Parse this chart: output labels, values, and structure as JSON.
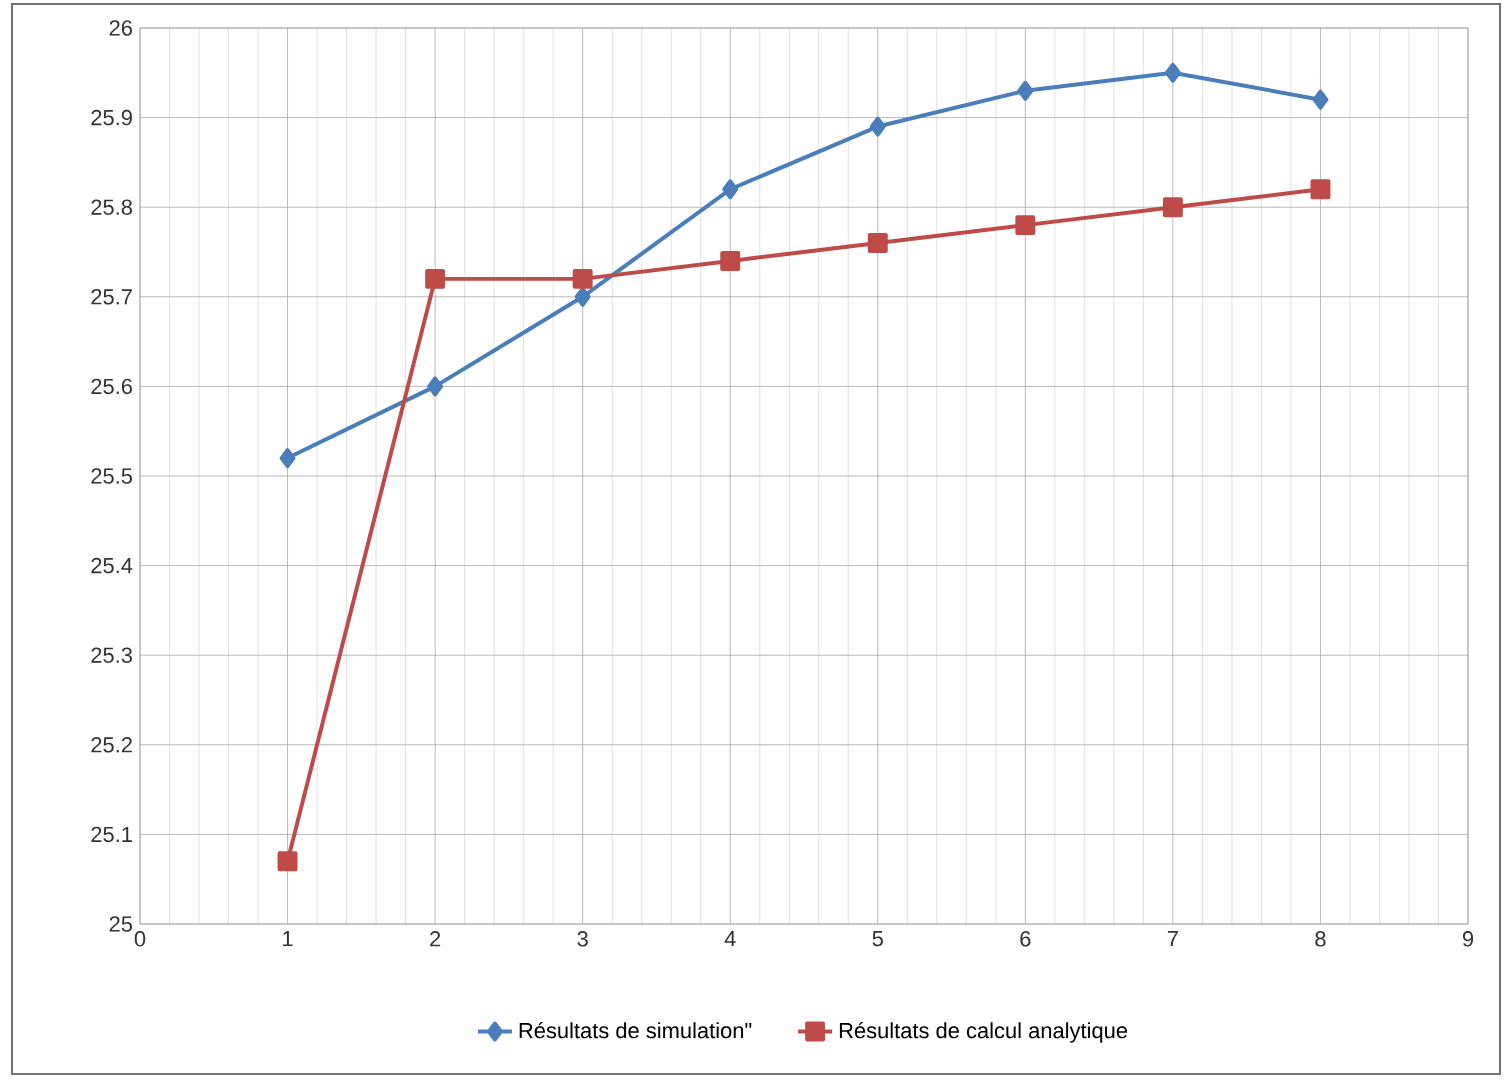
{
  "chart_data": {
    "type": "line",
    "x": [
      1,
      2,
      3,
      4,
      5,
      6,
      7,
      8
    ],
    "series": [
      {
        "name": "Résultats de simulation\"",
        "color": "#4a7ebb",
        "marker": "diamond",
        "values": [
          25.52,
          25.6,
          25.7,
          25.82,
          25.89,
          25.93,
          25.95,
          25.92
        ]
      },
      {
        "name": "Résultats de calcul analytique",
        "color": "#be4b48",
        "marker": "square",
        "values": [
          25.07,
          25.72,
          25.72,
          25.74,
          25.76,
          25.78,
          25.8,
          25.82
        ]
      }
    ],
    "xlim": [
      0,
      9
    ],
    "xticks": [
      0,
      1,
      2,
      3,
      4,
      5,
      6,
      7,
      8,
      9
    ],
    "ylim": [
      25,
      26
    ],
    "yticks": [
      25,
      25.1,
      25.2,
      25.3,
      25.4,
      25.5,
      25.6,
      25.7,
      25.8,
      25.9,
      26
    ],
    "grid": true,
    "legend": "bottom",
    "line_style": "solid"
  }
}
